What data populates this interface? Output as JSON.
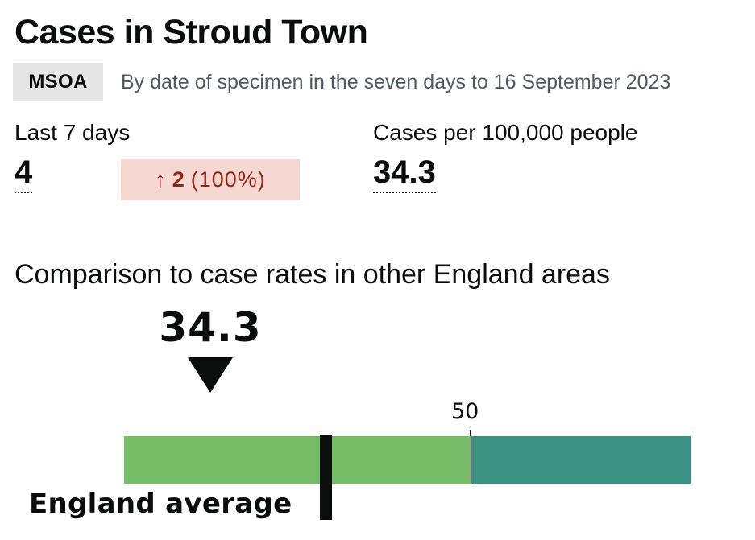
{
  "header": {
    "title": "Cases in Stroud Town",
    "area_type_tag": "MSOA",
    "subtitle": "By date of specimen in the seven days to 16 September 2023"
  },
  "metrics": {
    "last_7_days": {
      "label": "Last 7 days",
      "value": "4",
      "change": {
        "direction_icon": "up-arrow-icon",
        "arrow": "↑",
        "amount": "2",
        "percent": "(100%)"
      }
    },
    "rate": {
      "label": "Cases per 100,000 people",
      "value": "34.3"
    }
  },
  "comparison": {
    "heading": "Comparison to case rates in other England areas",
    "marker_value": "34.3",
    "marker_icon": "down-triangle-icon",
    "scale_label": "50",
    "average_label": "England average"
  },
  "colors": {
    "tag_bg": "#e6e6e6",
    "change_bg": "#f6d7d2",
    "change_text": "#942514",
    "band_low": "#77bc66",
    "band_high": "#3b9282"
  }
}
